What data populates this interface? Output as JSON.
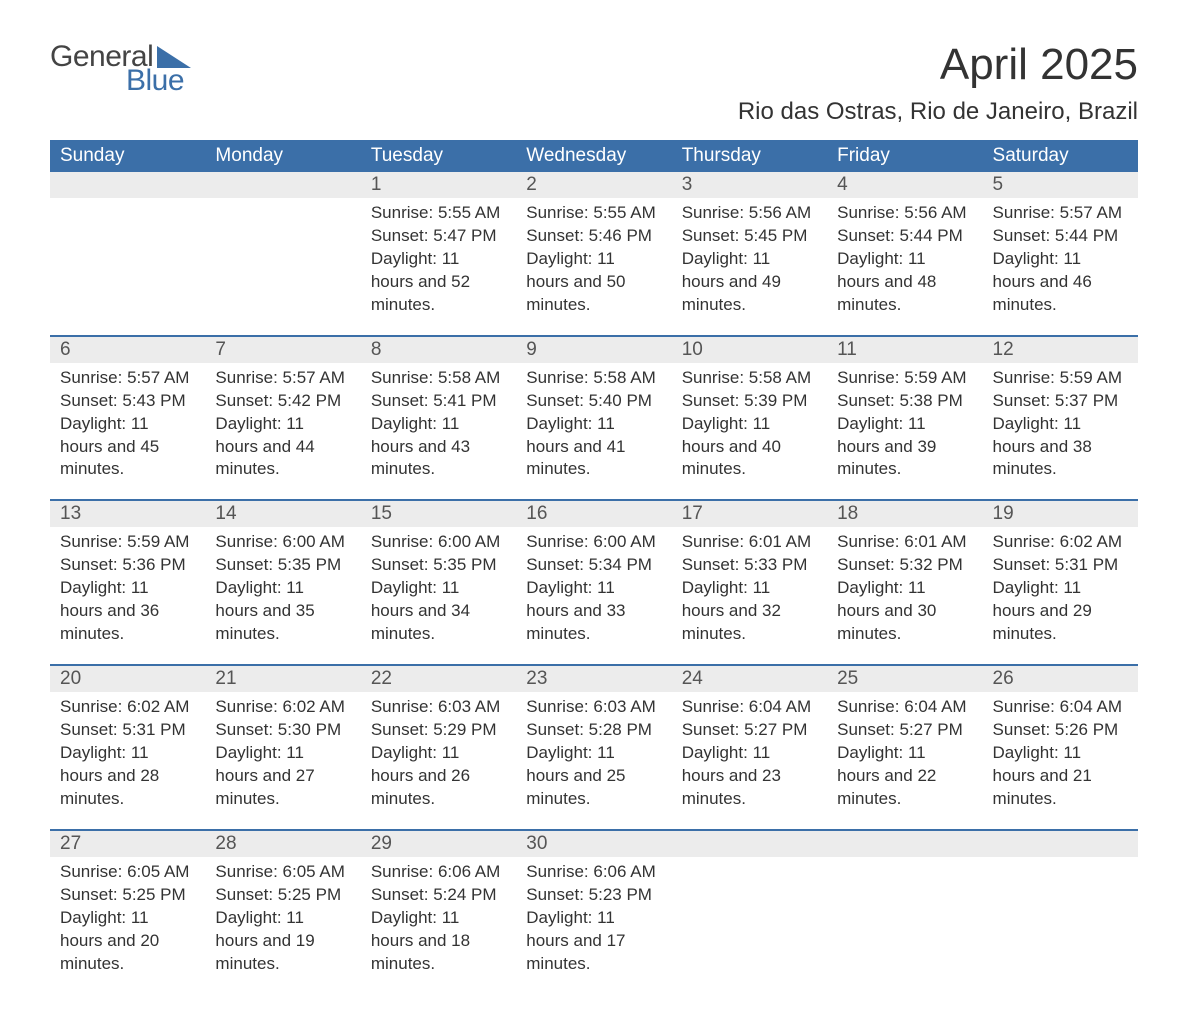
{
  "brand": {
    "word1": "General",
    "word2": "Blue",
    "accent_color": "#3b6fa8"
  },
  "title": "April 2025",
  "location": "Rio das Ostras, Rio de Janeiro, Brazil",
  "colors": {
    "header_bg": "#3b6fa8",
    "header_text": "#ffffff",
    "daynum_bg": "#ececec",
    "border_top": "#3b6fa8",
    "body_text": "#333333"
  },
  "fonts": {
    "title_size": 44,
    "location_size": 24,
    "dayheader_size": 19,
    "cell_size": 17
  },
  "day_headers": [
    "Sunday",
    "Monday",
    "Tuesday",
    "Wednesday",
    "Thursday",
    "Friday",
    "Saturday"
  ],
  "weeks": [
    [
      null,
      null,
      {
        "n": "1",
        "sr": "5:55 AM",
        "ss": "5:47 PM",
        "dl": "11 hours and 52 minutes."
      },
      {
        "n": "2",
        "sr": "5:55 AM",
        "ss": "5:46 PM",
        "dl": "11 hours and 50 minutes."
      },
      {
        "n": "3",
        "sr": "5:56 AM",
        "ss": "5:45 PM",
        "dl": "11 hours and 49 minutes."
      },
      {
        "n": "4",
        "sr": "5:56 AM",
        "ss": "5:44 PM",
        "dl": "11 hours and 48 minutes."
      },
      {
        "n": "5",
        "sr": "5:57 AM",
        "ss": "5:44 PM",
        "dl": "11 hours and 46 minutes."
      }
    ],
    [
      {
        "n": "6",
        "sr": "5:57 AM",
        "ss": "5:43 PM",
        "dl": "11 hours and 45 minutes."
      },
      {
        "n": "7",
        "sr": "5:57 AM",
        "ss": "5:42 PM",
        "dl": "11 hours and 44 minutes."
      },
      {
        "n": "8",
        "sr": "5:58 AM",
        "ss": "5:41 PM",
        "dl": "11 hours and 43 minutes."
      },
      {
        "n": "9",
        "sr": "5:58 AM",
        "ss": "5:40 PM",
        "dl": "11 hours and 41 minutes."
      },
      {
        "n": "10",
        "sr": "5:58 AM",
        "ss": "5:39 PM",
        "dl": "11 hours and 40 minutes."
      },
      {
        "n": "11",
        "sr": "5:59 AM",
        "ss": "5:38 PM",
        "dl": "11 hours and 39 minutes."
      },
      {
        "n": "12",
        "sr": "5:59 AM",
        "ss": "5:37 PM",
        "dl": "11 hours and 38 minutes."
      }
    ],
    [
      {
        "n": "13",
        "sr": "5:59 AM",
        "ss": "5:36 PM",
        "dl": "11 hours and 36 minutes."
      },
      {
        "n": "14",
        "sr": "6:00 AM",
        "ss": "5:35 PM",
        "dl": "11 hours and 35 minutes."
      },
      {
        "n": "15",
        "sr": "6:00 AM",
        "ss": "5:35 PM",
        "dl": "11 hours and 34 minutes."
      },
      {
        "n": "16",
        "sr": "6:00 AM",
        "ss": "5:34 PM",
        "dl": "11 hours and 33 minutes."
      },
      {
        "n": "17",
        "sr": "6:01 AM",
        "ss": "5:33 PM",
        "dl": "11 hours and 32 minutes."
      },
      {
        "n": "18",
        "sr": "6:01 AM",
        "ss": "5:32 PM",
        "dl": "11 hours and 30 minutes."
      },
      {
        "n": "19",
        "sr": "6:02 AM",
        "ss": "5:31 PM",
        "dl": "11 hours and 29 minutes."
      }
    ],
    [
      {
        "n": "20",
        "sr": "6:02 AM",
        "ss": "5:31 PM",
        "dl": "11 hours and 28 minutes."
      },
      {
        "n": "21",
        "sr": "6:02 AM",
        "ss": "5:30 PM",
        "dl": "11 hours and 27 minutes."
      },
      {
        "n": "22",
        "sr": "6:03 AM",
        "ss": "5:29 PM",
        "dl": "11 hours and 26 minutes."
      },
      {
        "n": "23",
        "sr": "6:03 AM",
        "ss": "5:28 PM",
        "dl": "11 hours and 25 minutes."
      },
      {
        "n": "24",
        "sr": "6:04 AM",
        "ss": "5:27 PM",
        "dl": "11 hours and 23 minutes."
      },
      {
        "n": "25",
        "sr": "6:04 AM",
        "ss": "5:27 PM",
        "dl": "11 hours and 22 minutes."
      },
      {
        "n": "26",
        "sr": "6:04 AM",
        "ss": "5:26 PM",
        "dl": "11 hours and 21 minutes."
      }
    ],
    [
      {
        "n": "27",
        "sr": "6:05 AM",
        "ss": "5:25 PM",
        "dl": "11 hours and 20 minutes."
      },
      {
        "n": "28",
        "sr": "6:05 AM",
        "ss": "5:25 PM",
        "dl": "11 hours and 19 minutes."
      },
      {
        "n": "29",
        "sr": "6:06 AM",
        "ss": "5:24 PM",
        "dl": "11 hours and 18 minutes."
      },
      {
        "n": "30",
        "sr": "6:06 AM",
        "ss": "5:23 PM",
        "dl": "11 hours and 17 minutes."
      },
      null,
      null,
      null
    ]
  ],
  "labels": {
    "sunrise": "Sunrise: ",
    "sunset": "Sunset: ",
    "daylight": "Daylight: "
  }
}
